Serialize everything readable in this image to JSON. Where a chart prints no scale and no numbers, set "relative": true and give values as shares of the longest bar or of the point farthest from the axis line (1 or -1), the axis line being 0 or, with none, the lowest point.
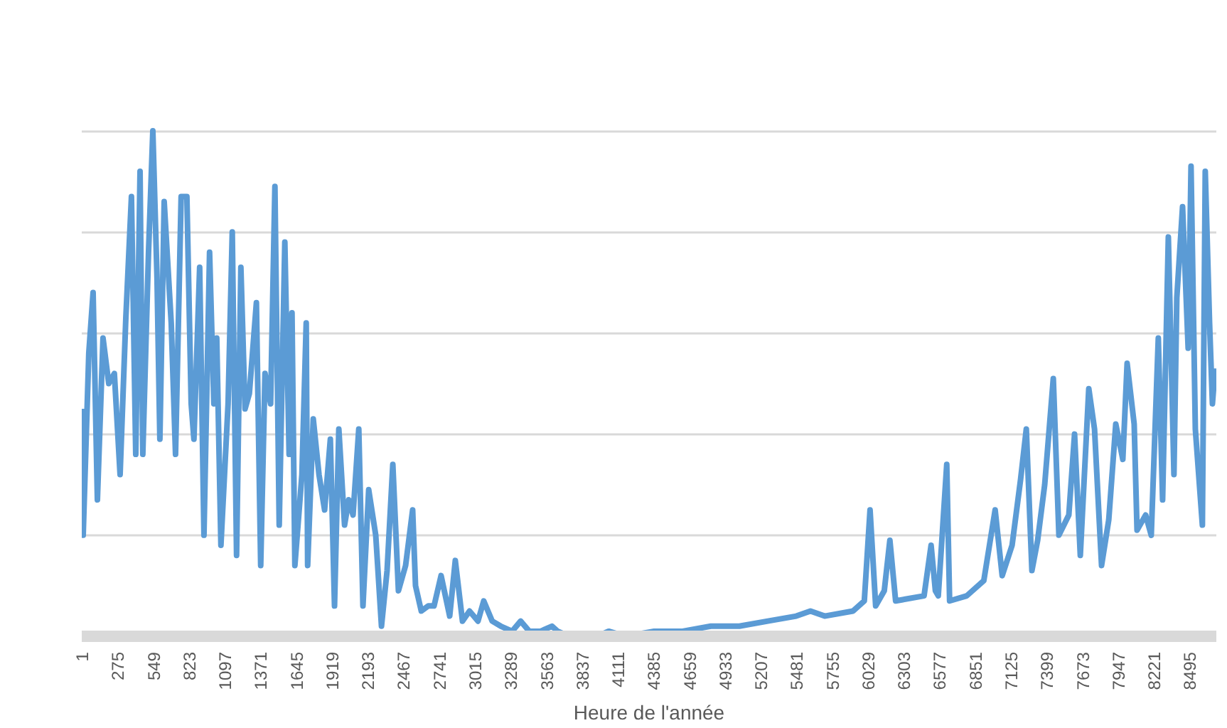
{
  "chart_data": {
    "type": "line",
    "relative": true,
    "xlabel": "Heure de l'année",
    "grid": "y",
    "marker": "none",
    "line_style": "solid",
    "xlim": [
      1,
      8700
    ],
    "xticks": [
      1,
      275,
      549,
      823,
      1097,
      1371,
      1645,
      1919,
      2193,
      2467,
      2741,
      3015,
      3289,
      3563,
      3837,
      4111,
      4385,
      4659,
      4933,
      5207,
      5481,
      5755,
      6029,
      6303,
      6577,
      6851,
      7125,
      7399,
      7673,
      7947,
      8221,
      8495
    ],
    "x": [
      1,
      12,
      55,
      88,
      121,
      164,
      208,
      251,
      295,
      339,
      382,
      415,
      448,
      469,
      513,
      546,
      578,
      600,
      633,
      687,
      720,
      763,
      807,
      840,
      861,
      905,
      938,
      981,
      1014,
      1036,
      1068,
      1123,
      1155,
      1188,
      1221,
      1253,
      1286,
      1340,
      1373,
      1406,
      1449,
      1482,
      1515,
      1558,
      1591,
      1613,
      1635,
      1689,
      1722,
      1733,
      1776,
      1820,
      1863,
      1907,
      1939,
      1972,
      2016,
      2048,
      2081,
      2125,
      2157,
      2201,
      2255,
      2299,
      2342,
      2386,
      2429,
      2484,
      2538,
      2560,
      2604,
      2658,
      2702,
      2756,
      2822,
      2865,
      2920,
      2974,
      3039,
      3083,
      3148,
      3214,
      3301,
      3366,
      3432,
      3519,
      3606,
      3650,
      3737,
      3846,
      3954,
      4041,
      4172,
      4390,
      4608,
      4825,
      5043,
      5261,
      5479,
      5588,
      5697,
      5914,
      6001,
      6045,
      6088,
      6154,
      6197,
      6241,
      6459,
      6513,
      6546,
      6568,
      6633,
      6655,
      6786,
      6917,
      7004,
      7058,
      7134,
      7199,
      7243,
      7286,
      7330,
      7384,
      7450,
      7493,
      7569,
      7613,
      7657,
      7722,
      7766,
      7820,
      7875,
      7929,
      7983,
      8016,
      8070,
      8092,
      8158,
      8201,
      8255,
      8288,
      8332,
      8375,
      8397,
      8441,
      8484,
      8506,
      8539,
      8593,
      8615,
      8648,
      8670,
      8691
    ],
    "series": [
      {
        "color": "#5b9bd5",
        "values": [
          0.45,
          0.2,
          0.56,
          0.68,
          0.27,
          0.59,
          0.5,
          0.52,
          0.32,
          0.63,
          0.87,
          0.36,
          0.92,
          0.36,
          0.76,
          1.0,
          0.71,
          0.39,
          0.86,
          0.62,
          0.36,
          0.87,
          0.87,
          0.46,
          0.39,
          0.73,
          0.2,
          0.76,
          0.46,
          0.59,
          0.18,
          0.46,
          0.8,
          0.16,
          0.73,
          0.45,
          0.48,
          0.66,
          0.14,
          0.52,
          0.46,
          0.89,
          0.22,
          0.78,
          0.36,
          0.64,
          0.14,
          0.32,
          0.62,
          0.14,
          0.43,
          0.32,
          0.25,
          0.39,
          0.06,
          0.41,
          0.22,
          0.27,
          0.24,
          0.41,
          0.06,
          0.29,
          0.2,
          0.02,
          0.13,
          0.34,
          0.09,
          0.14,
          0.25,
          0.1,
          0.05,
          0.06,
          0.06,
          0.12,
          0.04,
          0.15,
          0.03,
          0.05,
          0.03,
          0.07,
          0.03,
          0.02,
          0.01,
          0.03,
          0.01,
          0.01,
          0.02,
          0.01,
          0.0,
          0.0,
          0.0,
          0.01,
          0.0,
          0.01,
          0.01,
          0.02,
          0.02,
          0.03,
          0.04,
          0.05,
          0.04,
          0.05,
          0.07,
          0.25,
          0.06,
          0.09,
          0.19,
          0.07,
          0.08,
          0.18,
          0.09,
          0.08,
          0.34,
          0.07,
          0.08,
          0.11,
          0.25,
          0.12,
          0.18,
          0.31,
          0.41,
          0.13,
          0.19,
          0.3,
          0.51,
          0.2,
          0.24,
          0.4,
          0.16,
          0.49,
          0.41,
          0.14,
          0.23,
          0.42,
          0.35,
          0.54,
          0.42,
          0.21,
          0.24,
          0.2,
          0.59,
          0.27,
          0.79,
          0.32,
          0.67,
          0.85,
          0.57,
          0.93,
          0.41,
          0.22,
          0.92,
          0.62,
          0.46,
          0.53
        ]
      }
    ]
  }
}
